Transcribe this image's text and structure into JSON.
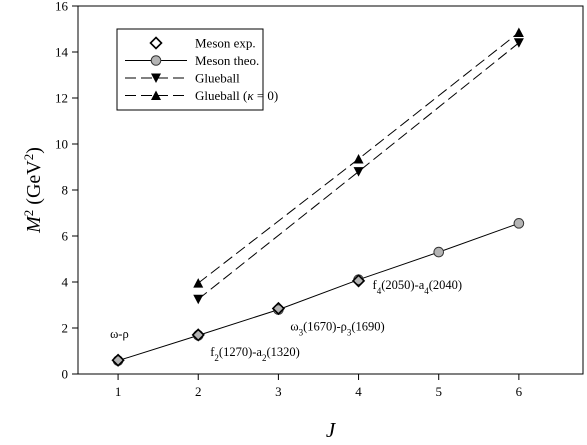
{
  "chart_data": {
    "type": "line",
    "xlabel": "J",
    "ylabel": "M² (GeV²)",
    "xlim": [
      0.5,
      6.8
    ],
    "ylim": [
      0,
      16
    ],
    "xticks": [
      1,
      2,
      3,
      4,
      5,
      6
    ],
    "yticks": [
      0,
      2,
      4,
      6,
      8,
      10,
      12,
      14,
      16
    ],
    "legend": {
      "placement": "top-left",
      "items": [
        {
          "label": "Meson exp.",
          "series": "meson_exp"
        },
        {
          "label": "Meson theo.",
          "series": "meson_theo"
        },
        {
          "label": "Glueball",
          "series": "glueball"
        },
        {
          "label": "Glueball (κ = 0)",
          "series": "glueball_k0"
        }
      ]
    },
    "series": [
      {
        "key": "meson_exp",
        "name": "Meson exp.",
        "marker": "diamond-open",
        "line": "none",
        "x": [
          1,
          2,
          3,
          4
        ],
        "y": [
          0.6,
          1.7,
          2.85,
          4.05
        ]
      },
      {
        "key": "meson_theo",
        "name": "Meson theo.",
        "marker": "circle-gray",
        "line": "solid",
        "x": [
          1,
          2,
          3,
          4,
          5,
          6
        ],
        "y": [
          0.58,
          1.68,
          2.8,
          4.1,
          5.3,
          6.55
        ]
      },
      {
        "key": "glueball",
        "name": "Glueball",
        "marker": "triangle-down",
        "line": "dashed",
        "x": [
          2,
          4,
          6
        ],
        "y": [
          3.25,
          8.8,
          14.4
        ]
      },
      {
        "key": "glueball_k0",
        "name": "Glueball (κ = 0)",
        "marker": "triangle-up",
        "line": "dashed",
        "x": [
          2,
          4,
          6
        ],
        "y": [
          3.95,
          9.35,
          14.85
        ]
      }
    ],
    "annotations": [
      {
        "x": 1,
        "y": 0.6,
        "parts": [
          {
            "t": "ω-ρ"
          }
        ]
      },
      {
        "x": 2,
        "y": 1.7,
        "parts": [
          {
            "t": "f"
          },
          {
            "t": "2",
            "sub": true
          },
          {
            "t": "(1270)-a"
          },
          {
            "t": "2",
            "sub": true
          },
          {
            "t": "(1320)"
          }
        ]
      },
      {
        "x": 3,
        "y": 2.85,
        "parts": [
          {
            "t": "ω"
          },
          {
            "t": "3",
            "sub": true
          },
          {
            "t": "(1670)-ρ"
          },
          {
            "t": "3",
            "sub": true
          },
          {
            "t": "(1690)"
          }
        ]
      },
      {
        "x": 4,
        "y": 4.05,
        "parts": [
          {
            "t": "f"
          },
          {
            "t": "4",
            "sub": true
          },
          {
            "t": "(2050)-a"
          },
          {
            "t": "4",
            "sub": true
          },
          {
            "t": "(2040)"
          }
        ]
      }
    ]
  }
}
